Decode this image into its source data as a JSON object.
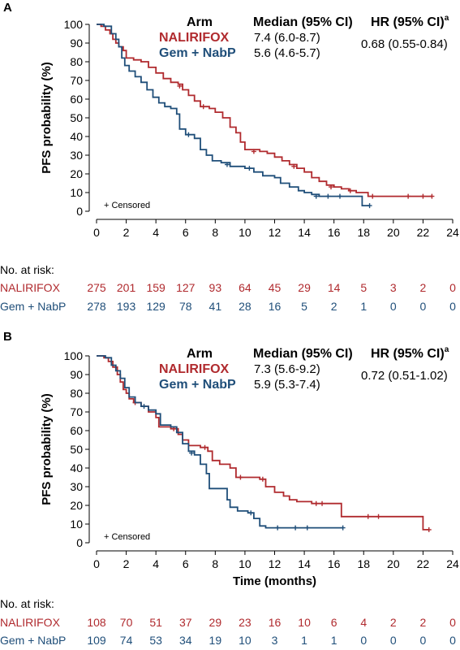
{
  "colors": {
    "red": "#b02a2e",
    "blue": "#1f4e79",
    "axis": "#000000"
  },
  "chart_data": [
    {
      "panel": "A",
      "type": "line",
      "title": "",
      "xlabel": "",
      "ylabel": "PFS probability (%)",
      "xlim": [
        0,
        24
      ],
      "ylim": [
        0,
        100
      ],
      "xticks": [
        0,
        2,
        4,
        6,
        8,
        10,
        12,
        14,
        16,
        18,
        20,
        22,
        24
      ],
      "yticks": [
        0,
        10,
        20,
        30,
        40,
        50,
        60,
        70,
        80,
        90,
        100
      ],
      "grid": false,
      "legend": {
        "head_arm": "Arm",
        "head_median": "Median (95% CI)",
        "head_hr": "HR (95% CI)",
        "head_hr_sup": "a",
        "rows": [
          {
            "name": "NALIRIFOX",
            "median": "7.4 (6.0-8.7)",
            "color": "red"
          },
          {
            "name": "Gem + NabP",
            "median": "5.6 (4.6-5.7)",
            "color": "blue"
          }
        ],
        "hr": "0.68 (0.55-0.84)"
      },
      "censored_label": "+ Censored",
      "series": [
        {
          "name": "NALIRIFOX",
          "color": "red",
          "points": [
            [
              0,
              100
            ],
            [
              0.3,
              99
            ],
            [
              0.6,
              97
            ],
            [
              0.9,
              95
            ],
            [
              1.1,
              92
            ],
            [
              1.3,
              90
            ],
            [
              1.5,
              88
            ],
            [
              1.8,
              86
            ],
            [
              2.0,
              82
            ],
            [
              2.5,
              81
            ],
            [
              3.0,
              80
            ],
            [
              3.5,
              77
            ],
            [
              4.0,
              74
            ],
            [
              4.5,
              71
            ],
            [
              5.0,
              69
            ],
            [
              5.5,
              68
            ],
            [
              5.8,
              65
            ],
            [
              6.2,
              62
            ],
            [
              6.6,
              59
            ],
            [
              7.0,
              56
            ],
            [
              7.6,
              55
            ],
            [
              8.0,
              53
            ],
            [
              8.5,
              50
            ],
            [
              9.0,
              45
            ],
            [
              9.4,
              42
            ],
            [
              9.7,
              37
            ],
            [
              10.0,
              33
            ],
            [
              11.0,
              32
            ],
            [
              11.5,
              31
            ],
            [
              12.0,
              29
            ],
            [
              12.5,
              27
            ],
            [
              13.0,
              25
            ],
            [
              13.5,
              23
            ],
            [
              14.0,
              21
            ],
            [
              14.5,
              18
            ],
            [
              15.0,
              16
            ],
            [
              15.5,
              14
            ],
            [
              16.0,
              13
            ],
            [
              16.5,
              12
            ],
            [
              17.0,
              11
            ],
            [
              17.5,
              10
            ],
            [
              18.0,
              10
            ],
            [
              18.3,
              8
            ],
            [
              22.6,
              8
            ]
          ],
          "censored": [
            [
              5.6,
              67
            ],
            [
              7.2,
              56
            ],
            [
              10.6,
              32
            ],
            [
              13.3,
              24
            ],
            [
              15.8,
              13
            ],
            [
              17.1,
              11
            ],
            [
              18.6,
              8
            ],
            [
              21.0,
              8
            ],
            [
              22.0,
              8
            ],
            [
              22.6,
              8
            ]
          ]
        },
        {
          "name": "Gem + NabP",
          "color": "blue",
          "points": [
            [
              0,
              100
            ],
            [
              0.5,
              99
            ],
            [
              1.0,
              95
            ],
            [
              1.3,
              92
            ],
            [
              1.5,
              88
            ],
            [
              1.7,
              82
            ],
            [
              1.9,
              78
            ],
            [
              2.2,
              75
            ],
            [
              2.6,
              72
            ],
            [
              3.0,
              69
            ],
            [
              3.4,
              65
            ],
            [
              3.8,
              61
            ],
            [
              4.2,
              58
            ],
            [
              4.6,
              56
            ],
            [
              5.0,
              55
            ],
            [
              5.4,
              52
            ],
            [
              5.6,
              44
            ],
            [
              6.0,
              41
            ],
            [
              6.6,
              39
            ],
            [
              7.0,
              33
            ],
            [
              7.4,
              30
            ],
            [
              7.8,
              27
            ],
            [
              8.4,
              26
            ],
            [
              9.0,
              24
            ],
            [
              10.0,
              23
            ],
            [
              10.6,
              21
            ],
            [
              11.2,
              19
            ],
            [
              12.0,
              18
            ],
            [
              12.4,
              15
            ],
            [
              13.0,
              13
            ],
            [
              13.6,
              11
            ],
            [
              14.0,
              10
            ],
            [
              14.5,
              9
            ],
            [
              15.0,
              8
            ],
            [
              17.9,
              8
            ],
            [
              17.9,
              3
            ],
            [
              18.4,
              3
            ]
          ],
          "censored": [
            [
              6.2,
              41
            ],
            [
              8.8,
              25
            ],
            [
              10.3,
              23
            ],
            [
              14.8,
              8
            ],
            [
              15.6,
              8
            ],
            [
              16.4,
              8
            ],
            [
              18.4,
              3
            ]
          ]
        }
      ],
      "risk_table": {
        "heading": "No. at risk:",
        "times": [
          0,
          2,
          4,
          6,
          8,
          10,
          12,
          14,
          16,
          18,
          20,
          22,
          24
        ],
        "rows": [
          {
            "name": "NALIRIFOX",
            "color": "red",
            "values": [
              "275",
              "201",
              "159",
              "127",
              "93",
              "64",
              "45",
              "29",
              "14",
              "5",
              "3",
              "2",
              "0"
            ]
          },
          {
            "name": "Gem + NabP",
            "color": "blue",
            "values": [
              "278",
              "193",
              "129",
              "78",
              "41",
              "28",
              "16",
              "5",
              "2",
              "1",
              "0",
              "0",
              "0"
            ]
          }
        ]
      }
    },
    {
      "panel": "B",
      "type": "line",
      "title": "",
      "xlabel": "Time (months)",
      "ylabel": "PFS probability (%)",
      "xlim": [
        0,
        24
      ],
      "ylim": [
        0,
        100
      ],
      "xticks": [
        0,
        2,
        4,
        6,
        8,
        10,
        12,
        14,
        16,
        18,
        20,
        22,
        24
      ],
      "yticks": [
        0,
        10,
        20,
        30,
        40,
        50,
        60,
        70,
        80,
        90,
        100
      ],
      "grid": false,
      "legend": {
        "head_arm": "Arm",
        "head_median": "Median (95% CI)",
        "head_hr": "HR (95% CI)",
        "head_hr_sup": "a",
        "rows": [
          {
            "name": "NALIRIFOX",
            "median": "7.3 (5.6-9.2)",
            "color": "red"
          },
          {
            "name": "Gem + NabP",
            "median": "5.9 (5.3-7.4)",
            "color": "blue"
          }
        ],
        "hr": "0.72 (0.51-1.02)"
      },
      "censored_label": "+ Censored",
      "series": [
        {
          "name": "NALIRIFOX",
          "color": "red",
          "points": [
            [
              0,
              100
            ],
            [
              0.5,
              99
            ],
            [
              0.8,
              97
            ],
            [
              1.1,
              94
            ],
            [
              1.4,
              90
            ],
            [
              1.6,
              86
            ],
            [
              1.8,
              82
            ],
            [
              2.0,
              80
            ],
            [
              2.2,
              77
            ],
            [
              2.5,
              75
            ],
            [
              3.0,
              73
            ],
            [
              3.5,
              70
            ],
            [
              4.0,
              67
            ],
            [
              4.2,
              62
            ],
            [
              5.0,
              61
            ],
            [
              5.5,
              58
            ],
            [
              5.8,
              55
            ],
            [
              6.2,
              52
            ],
            [
              7.0,
              51
            ],
            [
              7.5,
              49
            ],
            [
              7.8,
              44
            ],
            [
              8.3,
              42
            ],
            [
              9.0,
              40
            ],
            [
              9.4,
              35
            ],
            [
              10.0,
              35
            ],
            [
              11.0,
              34
            ],
            [
              11.4,
              30
            ],
            [
              12.0,
              27
            ],
            [
              12.6,
              25
            ],
            [
              13.0,
              23
            ],
            [
              13.5,
              22
            ],
            [
              14.5,
              21
            ],
            [
              15.6,
              21
            ],
            [
              16.5,
              14
            ],
            [
              22.0,
              14
            ],
            [
              22.0,
              7
            ],
            [
              22.4,
              7
            ]
          ],
          "censored": [
            [
              2.6,
              75
            ],
            [
              5.2,
              61
            ],
            [
              7.3,
              51
            ],
            [
              9.7,
              35
            ],
            [
              11.2,
              34
            ],
            [
              14.8,
              21
            ],
            [
              15.2,
              21
            ],
            [
              18.3,
              14
            ],
            [
              19.0,
              14
            ],
            [
              22.4,
              7
            ]
          ]
        },
        {
          "name": "Gem + NabP",
          "color": "blue",
          "points": [
            [
              0,
              100
            ],
            [
              0.6,
              99
            ],
            [
              1.0,
              95
            ],
            [
              1.3,
              92
            ],
            [
              1.6,
              88
            ],
            [
              1.9,
              83
            ],
            [
              2.2,
              78
            ],
            [
              2.6,
              75
            ],
            [
              3.0,
              73
            ],
            [
              3.5,
              71
            ],
            [
              4.0,
              69
            ],
            [
              4.3,
              63
            ],
            [
              5.0,
              62
            ],
            [
              5.4,
              59
            ],
            [
              5.8,
              53
            ],
            [
              6.2,
              49
            ],
            [
              6.6,
              47
            ],
            [
              7.0,
              42
            ],
            [
              7.4,
              37
            ],
            [
              7.6,
              29
            ],
            [
              8.6,
              29
            ],
            [
              8.8,
              23
            ],
            [
              9.0,
              19
            ],
            [
              9.5,
              17
            ],
            [
              10.2,
              16
            ],
            [
              10.6,
              13
            ],
            [
              11.0,
              9
            ],
            [
              11.4,
              8
            ],
            [
              16.6,
              8
            ]
          ],
          "censored": [
            [
              3.2,
              73
            ],
            [
              6.4,
              48
            ],
            [
              10.4,
              16
            ],
            [
              12.2,
              8
            ],
            [
              13.4,
              8
            ],
            [
              14.2,
              8
            ],
            [
              16.6,
              8
            ]
          ]
        }
      ],
      "risk_table": {
        "heading": "No. at risk:",
        "times": [
          0,
          2,
          4,
          6,
          8,
          10,
          12,
          14,
          16,
          18,
          20,
          22,
          24
        ],
        "rows": [
          {
            "name": "NALIRIFOX",
            "color": "red",
            "values": [
              "108",
              "70",
              "51",
              "37",
              "29",
              "23",
              "16",
              "10",
              "6",
              "4",
              "2",
              "2",
              "0"
            ]
          },
          {
            "name": "Gem + NabP",
            "color": "blue",
            "values": [
              "109",
              "74",
              "53",
              "34",
              "19",
              "10",
              "3",
              "1",
              "1",
              "0",
              "0",
              "0",
              "0"
            ]
          }
        ]
      }
    }
  ]
}
